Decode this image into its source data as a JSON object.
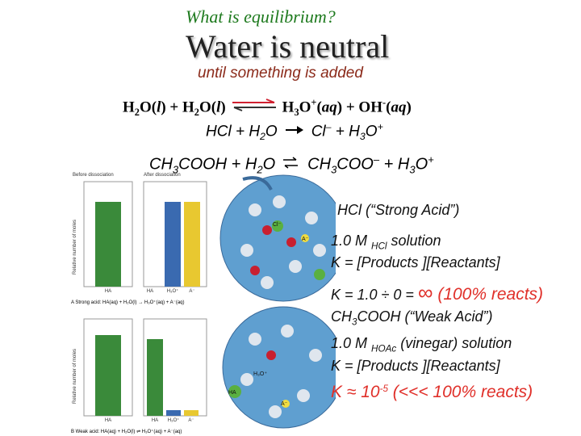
{
  "header": {
    "title": "What is equilibrium?",
    "heading": "Water is neutral",
    "subtitle": "until something is added"
  },
  "equations": [
    [
      "H",
      "2",
      "O(",
      "l",
      ") + H",
      "2",
      "O(",
      "l",
      ")",
      "H",
      "3",
      "O",
      "+",
      "(",
      "aq",
      ") + OH",
      "-",
      "(",
      "aq",
      ")"
    ],
    [
      "HCl + H",
      "2",
      "O",
      "Cl",
      "–",
      " + H",
      "3",
      "O",
      "+"
    ],
    [
      "CH",
      "3",
      "COOH + H",
      "2",
      "O",
      "CH",
      "3",
      "COO",
      "–",
      " + H",
      "3",
      "O",
      "+"
    ]
  ],
  "figure": {
    "before": "Before dissociation",
    "after": "After dissociation",
    "axis": "Relative number of moles",
    "strong_labels": [
      "HA",
      "HA",
      "H₃O⁺",
      "A⁻"
    ],
    "strong_caption": "A  Strong acid: HA(aq) + H₂O(l) → H₃O⁺(aq) + A⁻(aq)",
    "weak_labels": [
      "HA",
      "HA",
      "H₃O⁺",
      "A⁻"
    ],
    "weak_caption": "B  Weak acid: HA(aq) + H₂O(l) ⇌ H₃O⁺(aq) + A⁻(aq)",
    "beaker_labels": [
      "Cl⁻",
      "A⁻",
      "H₃O⁺",
      "HA",
      "A⁻"
    ]
  },
  "notes": [
    [
      "HCl (“Strong Acid”)"
    ],
    [
      "1.0 M ",
      "HCl",
      " solution"
    ],
    [
      "K = [Products ][Reactants]"
    ],
    [
      "K = 1.0 ÷ 0 = ",
      "∞",
      " (100% reacts)"
    ],
    [
      "CH",
      "3",
      "COOH (“Weak Acid”)"
    ],
    [
      "1.0 M ",
      "HOAc",
      " (vinegar) solution"
    ],
    [
      "K = [Products ][Reactants]"
    ],
    [
      "K ≈ 10",
      "-5",
      " (<<< 100% reacts)"
    ]
  ]
}
